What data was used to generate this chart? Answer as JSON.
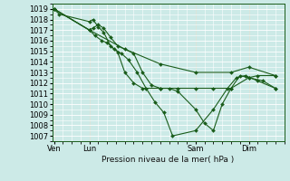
{
  "title": "Pression niveau de la mer( hPa )",
  "bg_color": "#cceae7",
  "grid_color": "#ffffff",
  "line_color": "#1a5c1a",
  "ylim": [
    1006.5,
    1019.5
  ],
  "yticks": [
    1007,
    1008,
    1009,
    1010,
    1011,
    1012,
    1013,
    1014,
    1015,
    1016,
    1017,
    1018,
    1019
  ],
  "xtick_labels": [
    "Ven",
    "Lun",
    "Sam",
    "Dim"
  ],
  "xtick_positions": [
    0,
    2,
    8,
    11
  ],
  "xlim": [
    -0.1,
    13.0
  ],
  "lines": [
    {
      "x": [
        0,
        2,
        4,
        6,
        8,
        10,
        11,
        12.5
      ],
      "y": [
        1019.0,
        1017.0,
        1015.2,
        1013.8,
        1013.0,
        1013.0,
        1013.5,
        1012.7
      ]
    },
    {
      "x": [
        0,
        0.3,
        2.0,
        2.2,
        2.5,
        2.8,
        3.2,
        3.6,
        4.0,
        4.5,
        5.0,
        6.0,
        7.0,
        8.0,
        9.0,
        10.0,
        11.0,
        11.5,
        12.5
      ],
      "y": [
        1019.0,
        1018.5,
        1017.8,
        1018.0,
        1017.3,
        1016.8,
        1015.5,
        1014.9,
        1013.0,
        1012.0,
        1011.5,
        1011.5,
        1011.5,
        1011.5,
        1011.5,
        1011.5,
        1012.5,
        1012.7,
        1012.7
      ]
    },
    {
      "x": [
        0,
        2.0,
        2.3,
        2.7,
        3.0,
        3.4,
        3.8,
        4.2,
        4.7,
        5.2,
        5.7,
        6.2,
        6.7,
        8.0,
        9.0,
        9.8,
        10.3,
        10.8,
        11.5,
        12.5
      ],
      "y": [
        1019.0,
        1017.0,
        1016.5,
        1016.0,
        1015.8,
        1015.2,
        1014.8,
        1014.2,
        1013.0,
        1011.5,
        1010.2,
        1009.2,
        1007.0,
        1007.5,
        1009.5,
        1011.5,
        1012.5,
        1012.7,
        1012.2,
        1011.5
      ]
    },
    {
      "x": [
        0,
        2.0,
        2.2,
        2.5,
        2.8,
        3.2,
        3.6,
        4.5,
        5.0,
        5.5,
        6.0,
        6.5,
        7.0,
        8.0,
        8.5,
        9.0,
        9.5,
        10.0,
        10.5,
        11.0,
        11.8,
        12.5
      ],
      "y": [
        1019.0,
        1017.0,
        1017.2,
        1017.5,
        1017.2,
        1016.3,
        1015.5,
        1014.8,
        1013.0,
        1011.8,
        1011.5,
        1011.5,
        1011.2,
        1009.5,
        1008.2,
        1007.5,
        1010.0,
        1011.5,
        1012.7,
        1012.5,
        1012.2,
        1011.5
      ]
    }
  ]
}
